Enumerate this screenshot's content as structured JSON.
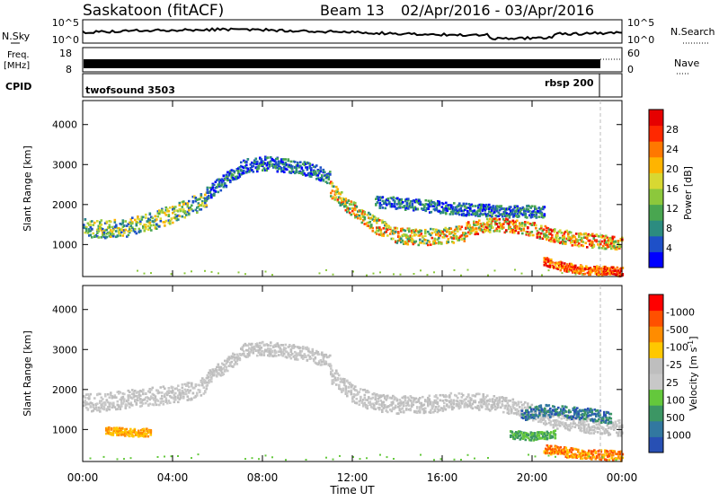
{
  "header": {
    "station": "Saskatoon (fitACF)",
    "beam": "Beam 13",
    "dates": "02/Apr/2016 - 03/Apr/2016"
  },
  "strips": {
    "nsky_label": "N.Sky",
    "nsky_ticks": [
      "10^5",
      "10^0"
    ],
    "nsearch_label": "N.Search",
    "nsearch_ticks": [
      "10^5",
      "10^0"
    ],
    "freq_label_1": "Freq.",
    "freq_label_2": "[MHz]",
    "freq_ticks": [
      "18",
      "8"
    ],
    "nave_label": "Nave",
    "nave_ticks": [
      "60",
      "0"
    ],
    "cpid_label": "CPID",
    "cpid_modes": [
      {
        "name": "twofsound 3503",
        "start_hour": 0,
        "end_hour": 22.9
      },
      {
        "name": "rbsp 200",
        "start_hour": 22.9,
        "end_hour": 24
      }
    ]
  },
  "chart_data": [
    {
      "type": "heatmap",
      "name": "power",
      "ylabel": "Slant Range [km]",
      "xlim": [
        0,
        24
      ],
      "ylim": [
        200,
        4600
      ],
      "yticks": [
        "1000",
        "2000",
        "3000",
        "4000"
      ],
      "colorbar": {
        "label": "Power [dB]",
        "ticks": [
          "4",
          "8",
          "12",
          "16",
          "20",
          "24",
          "28"
        ],
        "colors": [
          "#0000ff",
          "#1e50c8",
          "#2c8c80",
          "#49a650",
          "#8cc83c",
          "#d8d832",
          "#ffb400",
          "#ff7800",
          "#ff2800",
          "#e60000"
        ]
      },
      "bands": [
        {
          "t": [
            0,
            1,
            2,
            3,
            4,
            4.8,
            5.5
          ],
          "r": [
            1450,
            1400,
            1450,
            1600,
            1800,
            2000,
            2150
          ],
          "w": 450,
          "cmin": 1,
          "cmax": 6
        },
        {
          "t": [
            5.5,
            6.5,
            7.2,
            8,
            9,
            10,
            11
          ],
          "r": [
            2300,
            2700,
            3000,
            3050,
            3000,
            2900,
            2700
          ],
          "w": 350,
          "cmin": 0,
          "cmax": 3
        },
        {
          "t": [
            11,
            12,
            13,
            14,
            15,
            16,
            17
          ],
          "r": [
            2400,
            1900,
            1500,
            1250,
            1200,
            1250,
            1300
          ],
          "w": 400,
          "cmin": 2,
          "cmax": 8
        },
        {
          "t": [
            17,
            18,
            19,
            20,
            21,
            22,
            23,
            24
          ],
          "r": [
            1400,
            1500,
            1500,
            1400,
            1250,
            1150,
            1100,
            1050
          ],
          "w": 350,
          "cmin": 3,
          "cmax": 9
        },
        {
          "t": [
            20.5,
            21.5,
            22.5,
            23.5,
            24
          ],
          "r": [
            600,
            450,
            380,
            360,
            340
          ],
          "w": 220,
          "cmin": 6,
          "cmax": 9
        },
        {
          "t": [
            13,
            15,
            17,
            19,
            20.5
          ],
          "r": [
            2100,
            2000,
            1900,
            1850,
            1850
          ],
          "w": 300,
          "cmin": 0,
          "cmax": 3
        }
      ]
    },
    {
      "type": "heatmap",
      "name": "velocity",
      "xlabel": "Time UT",
      "ylabel": "Slant Range [km]",
      "xlim": [
        0,
        24
      ],
      "ylim": [
        200,
        4600
      ],
      "xticks": [
        "00:00",
        "04:00",
        "08:00",
        "12:00",
        "16:00",
        "20:00",
        "00:00"
      ],
      "yticks": [
        "1000",
        "2000",
        "3000",
        "4000"
      ],
      "colorbar": {
        "label": "Velocity [m s",
        "label_sup": "-1",
        "label_end": "]",
        "ticks": [
          "1000",
          "500",
          "100",
          "25",
          "-25",
          "-100",
          "-500",
          "-1000"
        ],
        "colors": [
          "#2850b4",
          "#3278a0",
          "#3c9664",
          "#64c83c",
          "#c8c8c8",
          "#bebebe",
          "#ffc800",
          "#ff8c00",
          "#ff5000",
          "#ff0000"
        ]
      },
      "bands": [
        {
          "t": [
            0,
            1,
            2,
            3,
            4,
            4.8,
            5.5
          ],
          "r": [
            1700,
            1700,
            1800,
            1850,
            1900,
            2000,
            2150
          ],
          "w": 450,
          "cmin": 4,
          "cmax": 5
        },
        {
          "t": [
            5.5,
            6.5,
            7.2,
            8,
            9,
            10,
            11
          ],
          "r": [
            2300,
            2700,
            3000,
            3050,
            3000,
            2900,
            2700
          ],
          "w": 350,
          "cmin": 4,
          "cmax": 5
        },
        {
          "t": [
            11,
            12,
            13,
            14,
            15,
            16,
            17
          ],
          "r": [
            2400,
            1900,
            1700,
            1650,
            1650,
            1700,
            1750
          ],
          "w": 450,
          "cmin": 4,
          "cmax": 5
        },
        {
          "t": [
            17,
            18,
            19,
            20,
            21,
            22,
            23,
            24
          ],
          "r": [
            1750,
            1700,
            1600,
            1450,
            1250,
            1150,
            1100,
            1050
          ],
          "w": 400,
          "cmin": 4,
          "cmax": 5
        },
        {
          "t": [
            20.5,
            21.5,
            22.5,
            23.5,
            24
          ],
          "r": [
            550,
            450,
            400,
            380,
            360
          ],
          "w": 240,
          "cmin": 6,
          "cmax": 8
        },
        {
          "t": [
            1,
            2,
            3
          ],
          "r": [
            1000,
            950,
            950
          ],
          "w": 200,
          "cmin": 6,
          "cmax": 7
        },
        {
          "t": [
            19,
            20,
            21
          ],
          "r": [
            900,
            850,
            900
          ],
          "w": 200,
          "cmin": 2,
          "cmax": 3
        },
        {
          "t": [
            19.5,
            20.5,
            21.5,
            22.5,
            23.5
          ],
          "r": [
            1400,
            1500,
            1450,
            1400,
            1300
          ],
          "w": 300,
          "cmin": 0,
          "cmax": 2
        }
      ]
    }
  ]
}
